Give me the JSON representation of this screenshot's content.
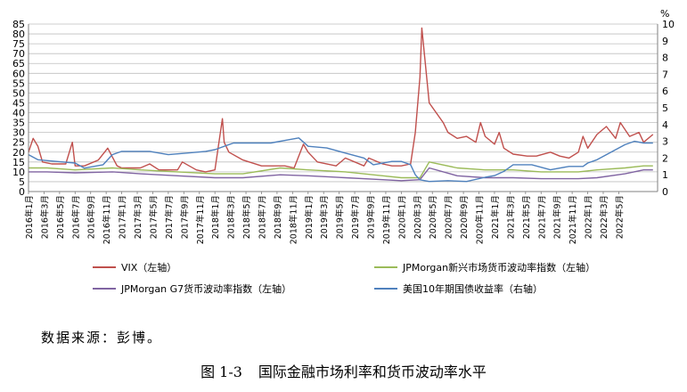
{
  "chart_data": {
    "type": "line",
    "title": "",
    "xlabel": "",
    "ylabel_left": "",
    "ylabel_right": "%",
    "y_left_range": [
      0,
      85
    ],
    "y_left_ticks": [
      0,
      5,
      10,
      15,
      20,
      25,
      30,
      35,
      40,
      45,
      50,
      55,
      60,
      65,
      70,
      75,
      80,
      85
    ],
    "y_right_range": [
      0,
      10
    ],
    "y_right_ticks": [
      0,
      1,
      2,
      3,
      4,
      5,
      6,
      7,
      8,
      9,
      10
    ],
    "grid": "horizontal",
    "legend_placement": "bottom",
    "x_labels": [
      "2016年1月",
      "2016年3月",
      "2016年5月",
      "2016年7月",
      "2016年9月",
      "2016年11月",
      "2017年1月",
      "2017年3月",
      "2017年5月",
      "2017年7月",
      "2017年9月",
      "2017年11月",
      "2018年1月",
      "2018年3月",
      "2018年5月",
      "2018年7月",
      "2018年9月",
      "2018年11月",
      "2019年1月",
      "2019年3月",
      "2019年5月",
      "2019年7月",
      "2019年9月",
      "2019年11月",
      "2020年1月",
      "2020年3月",
      "2020年5月",
      "2020年7月",
      "2020年9月",
      "2020年11月",
      "2021年1月",
      "2021年3月",
      "2021年5月",
      "2021年7月",
      "2021年9月",
      "2021年11月",
      "2022年1月",
      "2022年3月",
      "2022年5月"
    ],
    "series": [
      {
        "name": "VIX（左轴）",
        "axis": "left",
        "color": "#c0504d",
        "x": [
          2016.0,
          2016.05,
          2016.1,
          2016.15,
          2016.25,
          2016.4,
          2016.47,
          2016.5,
          2016.6,
          2016.75,
          2016.85,
          2016.95,
          2017.0,
          2017.2,
          2017.3,
          2017.4,
          2017.6,
          2017.65,
          2017.8,
          2017.9,
          2018.0,
          2018.08,
          2018.1,
          2018.15,
          2018.3,
          2018.5,
          2018.75,
          2018.85,
          2018.95,
          2019.0,
          2019.1,
          2019.3,
          2019.4,
          2019.6,
          2019.65,
          2019.8,
          2019.9,
          2020.0,
          2020.1,
          2020.15,
          2020.2,
          2020.22,
          2020.3,
          2020.45,
          2020.5,
          2020.6,
          2020.7,
          2020.8,
          2020.85,
          2020.9,
          2021.0,
          2021.05,
          2021.1,
          2021.2,
          2021.35,
          2021.45,
          2021.6,
          2021.7,
          2021.8,
          2021.9,
          2021.95,
          2022.0,
          2022.1,
          2022.2,
          2022.3,
          2022.35,
          2022.45,
          2022.55,
          2022.6,
          2022.7
        ],
        "y": [
          20,
          27,
          23,
          15,
          14,
          14,
          25,
          13,
          13,
          16,
          22,
          13,
          12,
          12,
          14,
          11,
          11,
          15,
          11,
          10,
          11,
          37,
          25,
          20,
          16,
          13,
          13,
          12,
          24,
          20,
          15,
          13,
          17,
          13,
          17,
          14,
          13,
          13,
          14,
          30,
          58,
          83,
          45,
          35,
          30,
          27,
          28,
          25,
          35,
          28,
          24,
          30,
          22,
          19,
          18,
          18,
          20,
          18,
          17,
          20,
          28,
          22,
          29,
          33,
          27,
          35,
          28,
          30,
          25,
          29
        ]
      },
      {
        "name": "JPMorgan新兴市场货币波动率指数（左轴）",
        "axis": "left",
        "color": "#9bbb59",
        "x": [
          2016.0,
          2016.2,
          2016.5,
          2016.9,
          2017.2,
          2017.6,
          2018.0,
          2018.3,
          2018.7,
          2019.0,
          2019.4,
          2019.8,
          2020.0,
          2020.2,
          2020.3,
          2020.6,
          2020.9,
          2021.2,
          2021.5,
          2021.9,
          2022.1,
          2022.4,
          2022.6,
          2022.7
        ],
        "y": [
          12,
          12,
          11,
          12,
          11,
          10,
          9,
          9,
          12,
          11,
          10,
          8,
          7,
          7,
          15,
          12,
          11,
          11,
          10,
          10,
          11,
          12,
          13,
          13
        ]
      },
      {
        "name": "JPMorgan G7货币波动率指数（左轴）",
        "axis": "left",
        "color": "#8064a2",
        "x": [
          2016.0,
          2016.2,
          2016.5,
          2016.9,
          2017.2,
          2017.6,
          2018.0,
          2018.3,
          2018.7,
          2019.0,
          2019.4,
          2019.8,
          2020.0,
          2020.2,
          2020.3,
          2020.6,
          2020.9,
          2021.2,
          2021.5,
          2021.9,
          2022.1,
          2022.4,
          2022.6,
          2022.7
        ],
        "y": [
          10,
          10,
          9.5,
          10,
          9,
          8,
          7,
          7,
          8.5,
          8,
          7,
          6,
          5.5,
          6,
          12,
          8,
          7,
          7,
          6.5,
          6.5,
          7,
          9,
          11,
          11
        ]
      },
      {
        "name": "美国10年期国债收益率（右轴）",
        "axis": "right",
        "color": "#4f81bd",
        "x": [
          2016.0,
          2016.1,
          2016.3,
          2016.5,
          2016.6,
          2016.8,
          2016.9,
          2017.0,
          2017.3,
          2017.5,
          2017.7,
          2017.9,
          2018.0,
          2018.2,
          2018.4,
          2018.6,
          2018.8,
          2018.9,
          2019.0,
          2019.2,
          2019.4,
          2019.6,
          2019.7,
          2019.9,
          2020.0,
          2020.1,
          2020.15,
          2020.2,
          2020.3,
          2020.5,
          2020.7,
          2020.9,
          2021.0,
          2021.1,
          2021.2,
          2021.4,
          2021.6,
          2021.8,
          2021.95,
          2022.0,
          2022.1,
          2022.2,
          2022.3,
          2022.4,
          2022.5,
          2022.6,
          2022.7
        ],
        "y": [
          2.2,
          1.9,
          1.8,
          1.7,
          1.4,
          1.6,
          2.2,
          2.4,
          2.4,
          2.2,
          2.3,
          2.4,
          2.5,
          2.9,
          2.9,
          2.9,
          3.1,
          3.2,
          2.7,
          2.6,
          2.3,
          2.0,
          1.6,
          1.8,
          1.8,
          1.6,
          1.0,
          0.7,
          0.6,
          0.65,
          0.6,
          0.85,
          0.95,
          1.2,
          1.6,
          1.6,
          1.3,
          1.5,
          1.5,
          1.7,
          1.9,
          2.2,
          2.5,
          2.8,
          3.0,
          2.9,
          2.9
        ]
      }
    ]
  },
  "source_text": "数据来源：彭博。",
  "caption": {
    "number": "图 1-3",
    "text": "国际金融市场利率和货币波动率水平"
  }
}
